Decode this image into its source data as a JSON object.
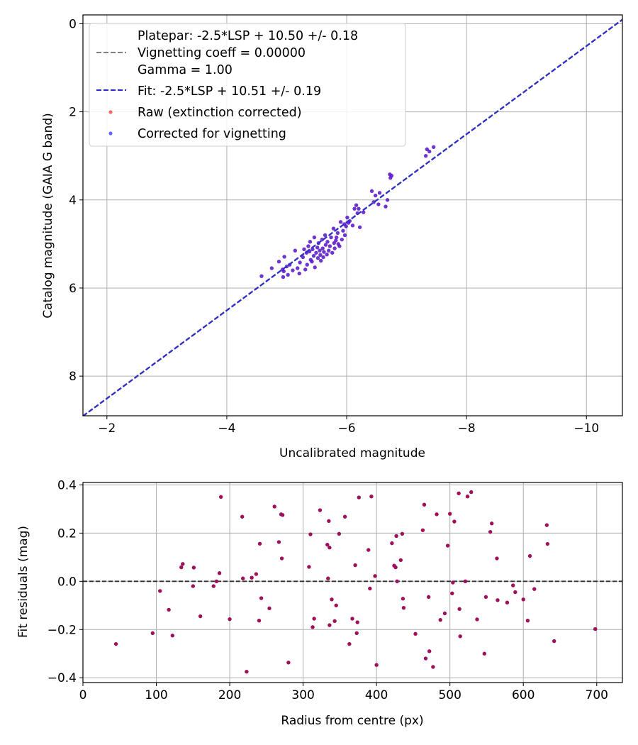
{
  "chart_data": [
    {
      "type": "scatter",
      "xlabel": "Uncalibrated magnitude",
      "ylabel": "Catalog magnitude (GAIA G band)",
      "xlim": [
        -1.6,
        -10.6
      ],
      "ylim": [
        8.9,
        -0.2
      ],
      "x_inverted": true,
      "y_inverted": true,
      "grid": true,
      "x_ticks": [
        -2,
        -4,
        -6,
        -8,
        -10
      ],
      "x_tick_labels": [
        "−2",
        "−4",
        "−6",
        "−8",
        "−10"
      ],
      "y_ticks": [
        0,
        2,
        4,
        6,
        8
      ],
      "y_tick_labels": [
        "0",
        "2",
        "4",
        "6",
        "8"
      ],
      "legend": {
        "placement": "upper-left",
        "entries": [
          {
            "kind": "dashed-line",
            "color": "#808080",
            "lines": [
              "Platepar: -2.5*LSP + 10.50 +/- 0.18",
              "Vignetting coeff = 0.00000",
              "Gamma = 1.00"
            ]
          },
          {
            "kind": "dashed-line",
            "color": "#2a2ad4",
            "lines": [
              "Fit: -2.5*LSP + 10.51 +/- 0.19"
            ]
          },
          {
            "kind": "marker",
            "color": "#ff4040",
            "lines": [
              "Raw (extinction corrected)"
            ]
          },
          {
            "kind": "marker",
            "color": "#4040ff",
            "lines": [
              "Corrected for vignetting"
            ]
          }
        ]
      },
      "lines": [
        {
          "name": "Platepar: -2.5*LSP + 10.50 +/- 0.18",
          "color": "#808080",
          "style": "dashed",
          "slope": 1,
          "intercept": 10.5
        },
        {
          "name": "Fit: -2.5*LSP + 10.51 +/- 0.19",
          "color": "#2a2ad4",
          "style": "dashed",
          "slope": 1,
          "intercept": 10.51
        }
      ],
      "series": [
        {
          "name": "Corrected for vignetting",
          "color": "#5512c8",
          "points": [
            [
              -4.58,
              5.73
            ],
            [
              -4.75,
              5.55
            ],
            [
              -4.87,
              5.4
            ],
            [
              -4.93,
              5.58
            ],
            [
              -4.94,
              5.75
            ],
            [
              -4.95,
              5.62
            ],
            [
              -4.96,
              5.29
            ],
            [
              -5.0,
              5.51
            ],
            [
              -5.02,
              5.7
            ],
            [
              -5.05,
              5.47
            ],
            [
              -5.1,
              5.6
            ],
            [
              -5.14,
              5.15
            ],
            [
              -5.18,
              5.55
            ],
            [
              -5.21,
              5.67
            ],
            [
              -5.22,
              5.42
            ],
            [
              -5.27,
              5.3
            ],
            [
              -5.29,
              5.12
            ],
            [
              -5.31,
              5.58
            ],
            [
              -5.33,
              5.2
            ],
            [
              -5.34,
              5.47
            ],
            [
              -5.36,
              5.05
            ],
            [
              -5.38,
              5.17
            ],
            [
              -5.39,
              4.95
            ],
            [
              -5.4,
              5.36
            ],
            [
              -5.42,
              5.4
            ],
            [
              -5.43,
              5.12
            ],
            [
              -5.45,
              5.27
            ],
            [
              -5.46,
              4.85
            ],
            [
              -5.47,
              5.53
            ],
            [
              -5.49,
              5.2
            ],
            [
              -5.51,
              5.08
            ],
            [
              -5.52,
              5.32
            ],
            [
              -5.53,
              4.98
            ],
            [
              -5.55,
              5.15
            ],
            [
              -5.56,
              5.25
            ],
            [
              -5.57,
              5.38
            ],
            [
              -5.59,
              4.9
            ],
            [
              -5.6,
              5.1
            ],
            [
              -5.61,
              5.3
            ],
            [
              -5.62,
              5.18
            ],
            [
              -5.64,
              4.8
            ],
            [
              -5.65,
              5.02
            ],
            [
              -5.67,
              5.24
            ],
            [
              -5.68,
              4.95
            ],
            [
              -5.7,
              5.15
            ],
            [
              -5.72,
              5.05
            ],
            [
              -5.74,
              4.85
            ],
            [
              -5.76,
              5.2
            ],
            [
              -5.78,
              4.65
            ],
            [
              -5.79,
              4.98
            ],
            [
              -5.8,
              5.1
            ],
            [
              -5.82,
              4.92
            ],
            [
              -5.83,
              4.85
            ],
            [
              -5.85,
              4.75
            ],
            [
              -5.86,
              5.0
            ],
            [
              -5.88,
              5.05
            ],
            [
              -5.9,
              4.5
            ],
            [
              -5.92,
              4.9
            ],
            [
              -5.94,
              4.7
            ],
            [
              -5.96,
              4.55
            ],
            [
              -5.97,
              4.8
            ],
            [
              -5.99,
              4.6
            ],
            [
              -6.01,
              4.4
            ],
            [
              -6.03,
              4.52
            ],
            [
              -6.05,
              4.48
            ],
            [
              -6.1,
              4.58
            ],
            [
              -6.13,
              4.2
            ],
            [
              -6.16,
              4.12
            ],
            [
              -6.18,
              4.3
            ],
            [
              -6.2,
              4.2
            ],
            [
              -6.22,
              4.62
            ],
            [
              -6.28,
              4.28
            ],
            [
              -6.42,
              3.8
            ],
            [
              -6.45,
              4.05
            ],
            [
              -6.48,
              3.9
            ],
            [
              -6.53,
              4.1
            ],
            [
              -6.55,
              3.84
            ],
            [
              -6.65,
              4.15
            ],
            [
              -6.68,
              4.0
            ],
            [
              -6.72,
              3.42
            ],
            [
              -6.73,
              3.5
            ],
            [
              -6.75,
              3.45
            ],
            [
              -7.32,
              3.0
            ],
            [
              -7.34,
              2.85
            ],
            [
              -7.38,
              2.9
            ],
            [
              -7.45,
              2.8
            ]
          ]
        }
      ]
    },
    {
      "type": "scatter",
      "xlabel": "Radius from centre (px)",
      "ylabel": "Fit residuals (mag)",
      "xlim": [
        0,
        735
      ],
      "ylim": [
        -0.42,
        0.41
      ],
      "grid": true,
      "x_ticks": [
        0,
        100,
        200,
        300,
        400,
        500,
        600,
        700
      ],
      "x_tick_labels": [
        "0",
        "100",
        "200",
        "300",
        "400",
        "500",
        "600",
        "700"
      ],
      "y_ticks": [
        -0.4,
        -0.2,
        0.0,
        0.2,
        0.4
      ],
      "y_tick_labels": [
        "−0.4",
        "−0.2",
        "0.0",
        "0.2",
        "0.4"
      ],
      "reference_line": {
        "y": 0,
        "color": "#333333",
        "style": "dashed"
      },
      "series": [
        {
          "color": "#a0105a",
          "points": [
            [
              45,
              -0.26
            ],
            [
              95,
              -0.215
            ],
            [
              105,
              -0.04
            ],
            [
              117,
              -0.118
            ],
            [
              122,
              -0.225
            ],
            [
              134,
              0.058
            ],
            [
              136,
              0.072
            ],
            [
              150,
              -0.02
            ],
            [
              151,
              0.057
            ],
            [
              160,
              -0.145
            ],
            [
              178,
              -0.02
            ],
            [
              182,
              0.0
            ],
            [
              186,
              0.034
            ],
            [
              188,
              0.35
            ],
            [
              200,
              -0.157
            ],
            [
              217,
              0.268
            ],
            [
              218,
              0.012
            ],
            [
              223,
              -0.375
            ],
            [
              230,
              0.015
            ],
            [
              236,
              0.03
            ],
            [
              240,
              -0.163
            ],
            [
              241,
              0.156
            ],
            [
              243,
              -0.07
            ],
            [
              254,
              -0.112
            ],
            [
              261,
              0.31
            ],
            [
              267,
              0.163
            ],
            [
              270,
              0.278
            ],
            [
              271,
              0.095
            ],
            [
              272,
              0.275
            ],
            [
              280,
              -0.337
            ],
            [
              308,
              0.06
            ],
            [
              310,
              0.195
            ],
            [
              313,
              -0.19
            ],
            [
              315,
              -0.155
            ],
            [
              323,
              0.295
            ],
            [
              333,
              0.152
            ],
            [
              334,
              0.012
            ],
            [
              336,
              -0.182
            ],
            [
              336,
              0.14
            ],
            [
              335,
              0.25
            ],
            [
              339,
              -0.075
            ],
            [
              343,
              -0.165
            ],
            [
              345,
              -0.1
            ],
            [
              349,
              0.197
            ],
            [
              357,
              0.268
            ],
            [
              363,
              -0.26
            ],
            [
              367,
              -0.155
            ],
            [
              371,
              0.067
            ],
            [
              373,
              -0.215
            ],
            [
              374,
              -0.17
            ],
            [
              376,
              0.348
            ],
            [
              389,
              0.13
            ],
            [
              391,
              -0.03
            ],
            [
              393,
              0.352
            ],
            [
              398,
              0.022
            ],
            [
              400,
              -0.347
            ],
            [
              421,
              0.158
            ],
            [
              424,
              0.065
            ],
            [
              426,
              0.058
            ],
            [
              427,
              0.188
            ],
            [
              428,
              0.0
            ],
            [
              433,
              0.088
            ],
            [
              435,
              0.197
            ],
            [
              436,
              -0.072
            ],
            [
              437,
              -0.11
            ],
            [
              453,
              -0.218
            ],
            [
              463,
              0.212
            ],
            [
              465,
              0.318
            ],
            [
              467,
              -0.32
            ],
            [
              471,
              -0.065
            ],
            [
              472,
              -0.29
            ],
            [
              477,
              -0.355
            ],
            [
              482,
              0.278
            ],
            [
              487,
              -0.16
            ],
            [
              493,
              -0.133
            ],
            [
              497,
              0.148
            ],
            [
              500,
              0.28
            ],
            [
              503,
              -0.05
            ],
            [
              504,
              -0.005
            ],
            [
              506,
              0.248
            ],
            [
              512,
              0.365
            ],
            [
              513,
              -0.115
            ],
            [
              514,
              -0.228
            ],
            [
              521,
              0.0
            ],
            [
              524,
              0.352
            ],
            [
              529,
              0.37
            ],
            [
              537,
              -0.158
            ],
            [
              547,
              -0.3
            ],
            [
              549,
              -0.065
            ],
            [
              555,
              0.205
            ],
            [
              557,
              0.24
            ],
            [
              564,
              0.095
            ],
            [
              565,
              -0.078
            ],
            [
              578,
              -0.088
            ],
            [
              586,
              -0.017
            ],
            [
              589,
              -0.045
            ],
            [
              600,
              -0.075
            ],
            [
              606,
              -0.163
            ],
            [
              609,
              0.105
            ],
            [
              615,
              -0.032
            ],
            [
              632,
              0.233
            ],
            [
              633,
              0.155
            ],
            [
              642,
              -0.248
            ],
            [
              698,
              -0.198
            ]
          ]
        }
      ]
    }
  ]
}
